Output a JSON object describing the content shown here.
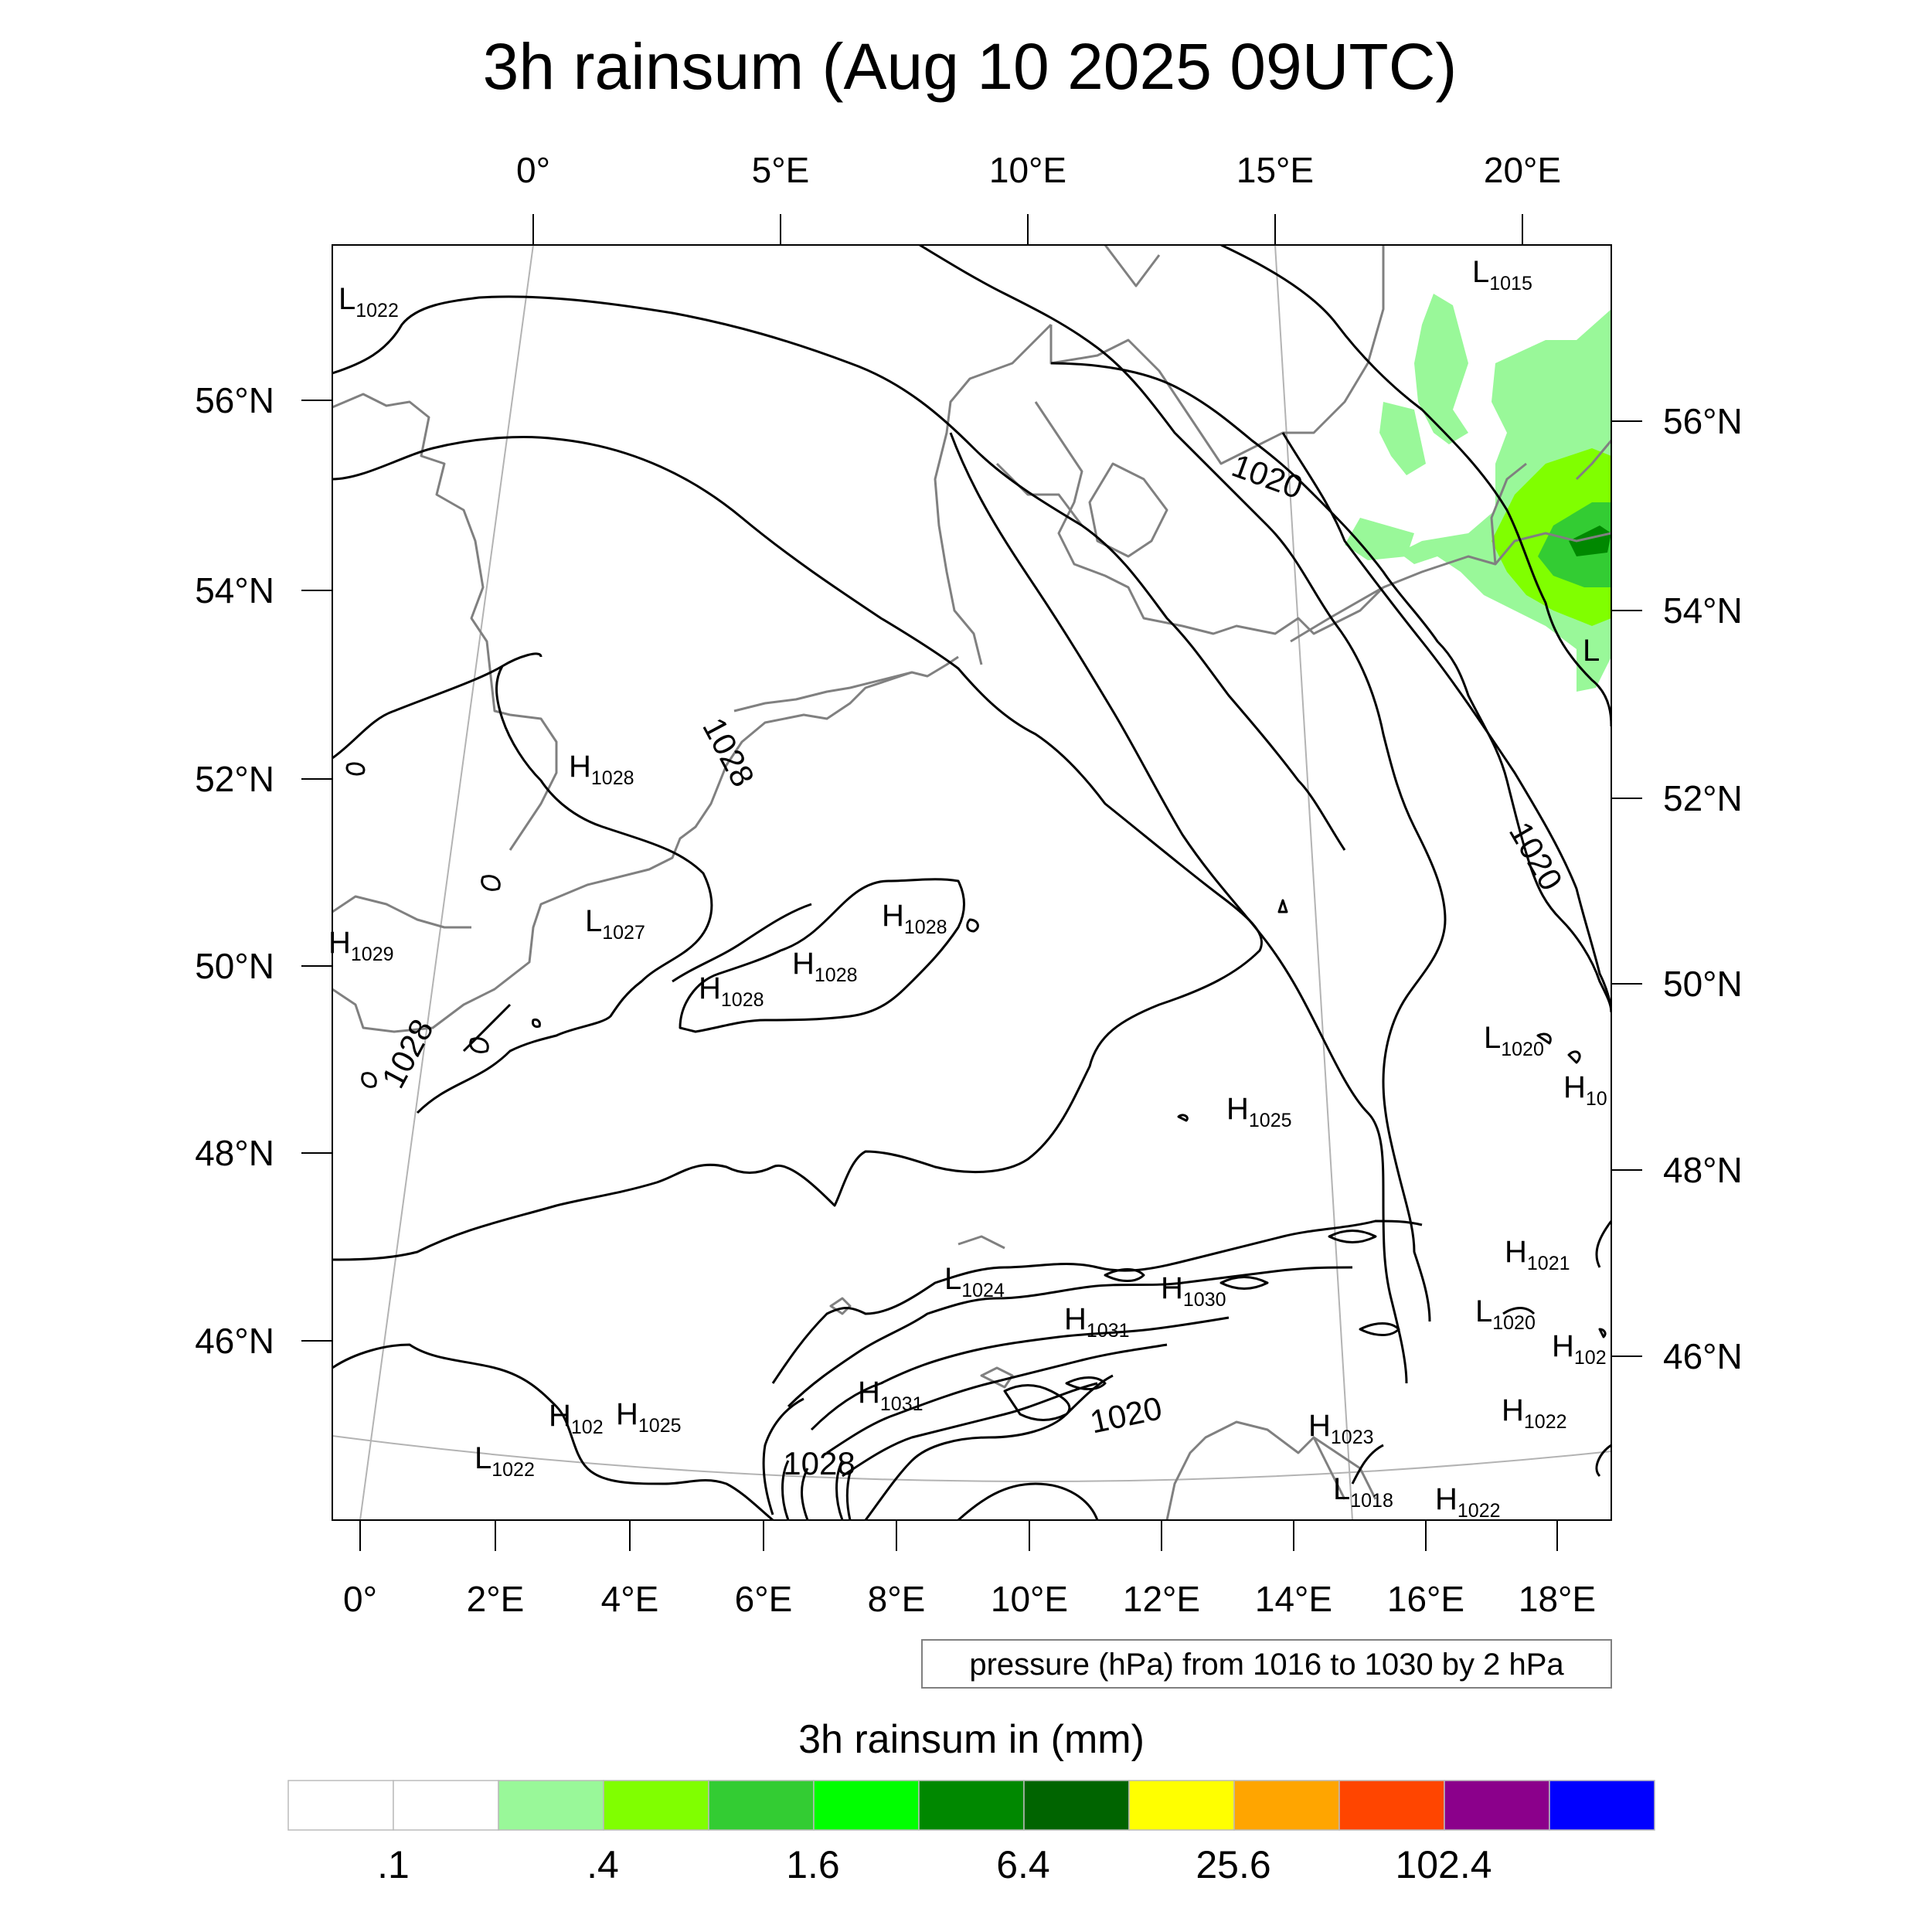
{
  "title": "3h rainsum (Aug 10 2025 09UTC)",
  "info_box": "pressure (hPa) from 1016 to 1030 by 2 hPa",
  "map": {
    "lon_ticks_top": [
      "0°",
      "5°E",
      "10°E",
      "15°E",
      "20°E"
    ],
    "lon_ticks_bottom": [
      "0°",
      "2°E",
      "4°E",
      "6°E",
      "8°E",
      "10°E",
      "12°E",
      "14°E",
      "16°E",
      "18°E"
    ],
    "lat_ticks_left": [
      "56°N",
      "54°N",
      "52°N",
      "50°N",
      "48°N",
      "46°N"
    ],
    "lat_ticks_right": [
      "56°N",
      "54°N",
      "52°N",
      "50°N",
      "48°N",
      "46°N"
    ],
    "pressure_labels": [
      {
        "kind": "L",
        "value": "1022"
      },
      {
        "kind": "L",
        "value": "1015"
      },
      {
        "kind": "H",
        "value": "1028"
      },
      {
        "kind": "L",
        "value": "1027"
      },
      {
        "kind": "H",
        "value": "1029"
      },
      {
        "kind": "H",
        "value": "1028"
      },
      {
        "kind": "H",
        "value": "1028"
      },
      {
        "kind": "H",
        "value": "1028"
      },
      {
        "kind": "L",
        "value": "1020"
      },
      {
        "kind": "H",
        "value": "10"
      },
      {
        "kind": "H",
        "value": "1025"
      },
      {
        "kind": "L",
        "value": "1024"
      },
      {
        "kind": "H",
        "value": "1030"
      },
      {
        "kind": "H",
        "value": "1031"
      },
      {
        "kind": "H",
        "value": "1031"
      },
      {
        "kind": "H",
        "value": "1021"
      },
      {
        "kind": "L",
        "value": "1020"
      },
      {
        "kind": "H",
        "value": "102"
      },
      {
        "kind": "H",
        "value": "102"
      },
      {
        "kind": "H",
        "value": "1025"
      },
      {
        "kind": "L",
        "value": "1022"
      },
      {
        "kind": "H",
        "value": "1023"
      },
      {
        "kind": "H",
        "value": "1022"
      },
      {
        "kind": "H",
        "value": "1022"
      },
      {
        "kind": "L",
        "value": "1018"
      },
      {
        "kind": "L",
        "value": ""
      }
    ],
    "contour_labels": [
      "1020",
      "1020",
      "1020",
      "1028",
      "1028",
      "1028"
    ]
  },
  "colorbar": {
    "title": "3h rainsum in (mm)",
    "colors": [
      "#ffffff",
      "#ffffff",
      "#99f899",
      "#80ff00",
      "#33cc33",
      "#00ff00",
      "#008800",
      "#006400",
      "#ffff00",
      "#ffa500",
      "#ff4500",
      "#8b008b",
      "#0000ff"
    ],
    "tick_labels": [
      ".1",
      ".4",
      "1.6",
      "6.4",
      "25.6",
      "102.4"
    ]
  },
  "colors": {
    "coast": "#808080",
    "contour": "#000000",
    "grid": "#b3b3b3"
  }
}
